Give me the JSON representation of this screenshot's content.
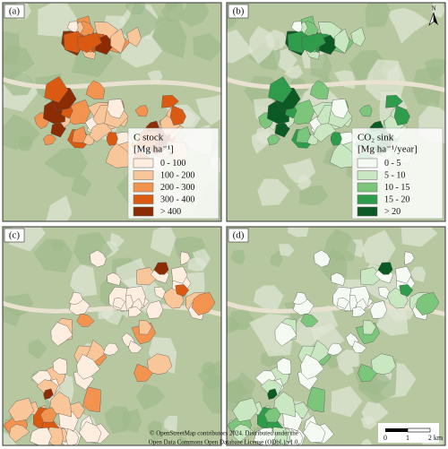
{
  "panels": [
    {
      "label": "(a)"
    },
    {
      "label": "(b)"
    },
    {
      "label": "(c)"
    },
    {
      "label": "(d)"
    }
  ],
  "legends": [
    {
      "title": "C stock",
      "unit": "[Mg ha⁻¹]",
      "entries": [
        {
          "label": "0 - 100",
          "color": "#fdeee0"
        },
        {
          "label": "100 - 200",
          "color": "#f9c69a"
        },
        {
          "label": "200 - 300",
          "color": "#f29450"
        },
        {
          "label": "300 - 400",
          "color": "#da5a12"
        },
        {
          "label": "> 400",
          "color": "#8c2c04"
        }
      ]
    },
    {
      "title": "CO₂ sink",
      "unit": "[Mg ha⁻¹/year]",
      "entries": [
        {
          "label": "0 - 5",
          "color": "#f5fbf2"
        },
        {
          "label": "5 - 10",
          "color": "#c9e8c1"
        },
        {
          "label": "10 - 15",
          "color": "#7cc67b"
        },
        {
          "label": "15 - 20",
          "color": "#2f9c4c"
        },
        {
          "label": "> 20",
          "color": "#0b5a23"
        }
      ]
    }
  ],
  "north_arrow": "N",
  "scale_bar": [
    "0",
    "1",
    "2 km"
  ],
  "attribution": [
    "© OpenStreetMap contributors 2024. Distributed under the",
    "Open Data Commons Open Database License (ODbL) v1.0."
  ]
}
